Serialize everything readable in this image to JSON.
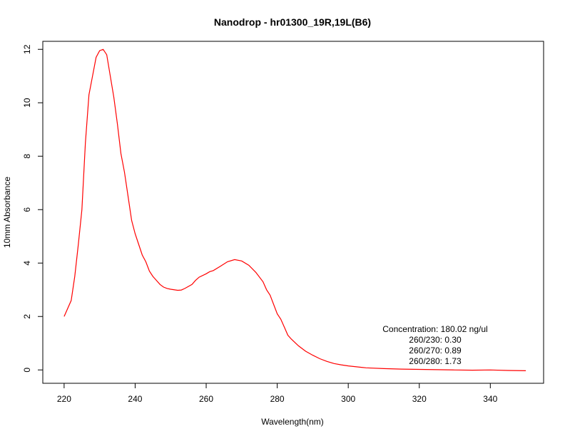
{
  "chart_data": {
    "type": "line",
    "title": "Nanodrop - hr01300_19R,19L(B6)",
    "xlabel": "Wavelength(nm)",
    "ylabel": "10mm Absorbance",
    "xlim": [
      214,
      355
    ],
    "ylim": [
      -0.5,
      12.3
    ],
    "x_ticks": [
      220,
      240,
      260,
      280,
      300,
      320,
      340
    ],
    "y_ticks": [
      0,
      2,
      4,
      6,
      8,
      10,
      12
    ],
    "grid": false,
    "line_color": "#ff0000",
    "series": [
      {
        "x": [
          220,
          222,
          223,
          224,
          225,
          226,
          227,
          228,
          229,
          230,
          231,
          232,
          233,
          234,
          235,
          236,
          237,
          238,
          239,
          240,
          241,
          242,
          243,
          244,
          245,
          246,
          247,
          248,
          249,
          250,
          252,
          253,
          254,
          256,
          257,
          258,
          260,
          261,
          262,
          264,
          266,
          268,
          270,
          272,
          274,
          276,
          277,
          278,
          279,
          280,
          281,
          282,
          283,
          284,
          286,
          288,
          290,
          292,
          294,
          296,
          298,
          300,
          305,
          310,
          315,
          320,
          325,
          330,
          335,
          340,
          345,
          350
        ],
        "y": [
          2.0,
          2.6,
          3.5,
          4.7,
          6.0,
          8.5,
          10.3,
          11.0,
          11.7,
          11.95,
          12.0,
          11.8,
          11.0,
          10.2,
          9.2,
          8.1,
          7.4,
          6.5,
          5.6,
          5.1,
          4.7,
          4.3,
          4.05,
          3.7,
          3.5,
          3.35,
          3.2,
          3.1,
          3.05,
          3.02,
          2.98,
          2.99,
          3.05,
          3.2,
          3.35,
          3.47,
          3.6,
          3.68,
          3.72,
          3.88,
          4.05,
          4.13,
          4.08,
          3.92,
          3.65,
          3.3,
          3.0,
          2.8,
          2.45,
          2.1,
          1.9,
          1.6,
          1.3,
          1.15,
          0.9,
          0.7,
          0.55,
          0.42,
          0.32,
          0.24,
          0.19,
          0.15,
          0.08,
          0.05,
          0.03,
          0.02,
          0.01,
          0.0,
          -0.01,
          0.0,
          -0.02,
          -0.03
        ]
      }
    ],
    "annotations": [
      "Concentration: 180.02 ng/ul",
      "260/230: 0.30",
      "260/270: 0.89",
      "260/280: 1.73"
    ]
  }
}
